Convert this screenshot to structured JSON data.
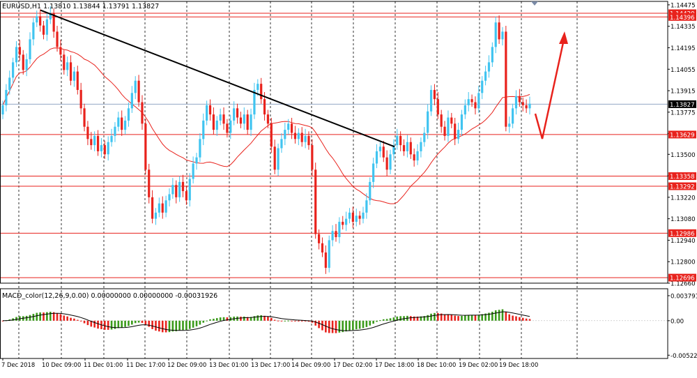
{
  "colors": {
    "bull": "#40c4f0",
    "bear": "#e8221c",
    "line": "#e8221c",
    "trend": "#000000",
    "macd_pos": "#3a9a1a",
    "macd_neg": "#e8221c",
    "grid": "#000000",
    "price_line": "#93a6c4",
    "arrow": "#e8221c",
    "label_bg": "#e8221c",
    "current_bg": "#000000"
  },
  "chart_data": {
    "type": "candlestick",
    "main_header": "EURUSD,H1  1.13810 1.13844 1.13791 1.13827",
    "macd_header": "MACD_color(12,26,9,0.00) 0.00000000 0.00000000 -0.00031926",
    "price_ylim": [
      1.1266,
      1.1447
    ],
    "macd_ylim": [
      -0.0053,
      0.004
    ],
    "price_ticks": [
      "1.14475",
      "1.14335",
      "1.14195",
      "1.14055",
      "1.13915",
      "1.13775",
      "1.13635",
      "1.13500",
      "1.13360",
      "1.13220",
      "1.13080",
      "1.12940",
      "1.12800",
      "1.12660"
    ],
    "macd_ticks": [
      "0.003791",
      "0.00",
      "-0.005225"
    ],
    "x_labels": [
      "7 Dec 2018",
      "10 Dec 09:00",
      "11 Dec 01:00",
      "11 Dec 17:00",
      "12 Dec 09:00",
      "13 Dec 01:00",
      "13 Dec 17:00",
      "14 Dec 09:00",
      "17 Dec 02:00",
      "17 Dec 18:00",
      "18 Dec 10:00",
      "19 Dec 02:00",
      "19 Dec 18:00"
    ],
    "levels": [
      {
        "label": "1.14420",
        "value": 1.1442
      },
      {
        "label": "1.14396",
        "value": 1.14396
      },
      {
        "label": "1.13629",
        "value": 1.13629
      },
      {
        "label": "1.13358",
        "value": 1.13358
      },
      {
        "label": "1.13292",
        "value": 1.13292
      },
      {
        "label": "1.12986",
        "value": 1.12986
      },
      {
        "label": "1.12696",
        "value": 1.12696
      }
    ],
    "current_price": {
      "label": "1.13827",
      "value": 1.13827
    },
    "close": [
      1.1382,
      1.1392,
      1.14,
      1.141,
      1.142,
      1.1415,
      1.1405,
      1.1412,
      1.1425,
      1.1436,
      1.144,
      1.1434,
      1.1428,
      1.1438,
      1.1442,
      1.143,
      1.142,
      1.1415,
      1.1405,
      1.141,
      1.1398,
      1.1404,
      1.1392,
      1.138,
      1.1368,
      1.136,
      1.1356,
      1.1362,
      1.1352,
      1.1356,
      1.135,
      1.1358,
      1.1362,
      1.1368,
      1.1374,
      1.1366,
      1.1372,
      1.138,
      1.139,
      1.1398,
      1.1384,
      1.137,
      1.134,
      1.1322,
      1.1308,
      1.1312,
      1.1318,
      1.1312,
      1.132,
      1.1324,
      1.133,
      1.1322,
      1.1332,
      1.1326,
      1.132,
      1.1334,
      1.1344,
      1.1348,
      1.136,
      1.1372,
      1.1382,
      1.1376,
      1.1366,
      1.1372,
      1.1376,
      1.137,
      1.1364,
      1.1372,
      1.138,
      1.1374,
      1.137,
      1.1376,
      1.1366,
      1.1376,
      1.1392,
      1.1396,
      1.1386,
      1.1376,
      1.137,
      1.1355,
      1.134,
      1.1354,
      1.136,
      1.1366,
      1.137,
      1.1364,
      1.136,
      1.1364,
      1.1358,
      1.1362,
      1.1356,
      1.134,
      1.1298,
      1.1292,
      1.1286,
      1.1276,
      1.1294,
      1.13,
      1.1296,
      1.1306,
      1.1304,
      1.1308,
      1.1312,
      1.1306,
      1.131,
      1.1308,
      1.1312,
      1.132,
      1.1332,
      1.1344,
      1.1352,
      1.1355,
      1.1348,
      1.134,
      1.135,
      1.1356,
      1.1362,
      1.1356,
      1.1352,
      1.1358,
      1.135,
      1.1346,
      1.1352,
      1.1358,
      1.1364,
      1.1378,
      1.1392,
      1.1386,
      1.1376,
      1.1368,
      1.1362,
      1.1374,
      1.137,
      1.136,
      1.1366,
      1.1376,
      1.1382,
      1.1386,
      1.1384,
      1.138,
      1.139,
      1.1398,
      1.1404,
      1.141,
      1.142,
      1.1436,
      1.1425,
      1.143,
      1.1368,
      1.137,
      1.138,
      1.1388,
      1.1384,
      1.1382,
      1.138,
      1.1383
    ]
  }
}
